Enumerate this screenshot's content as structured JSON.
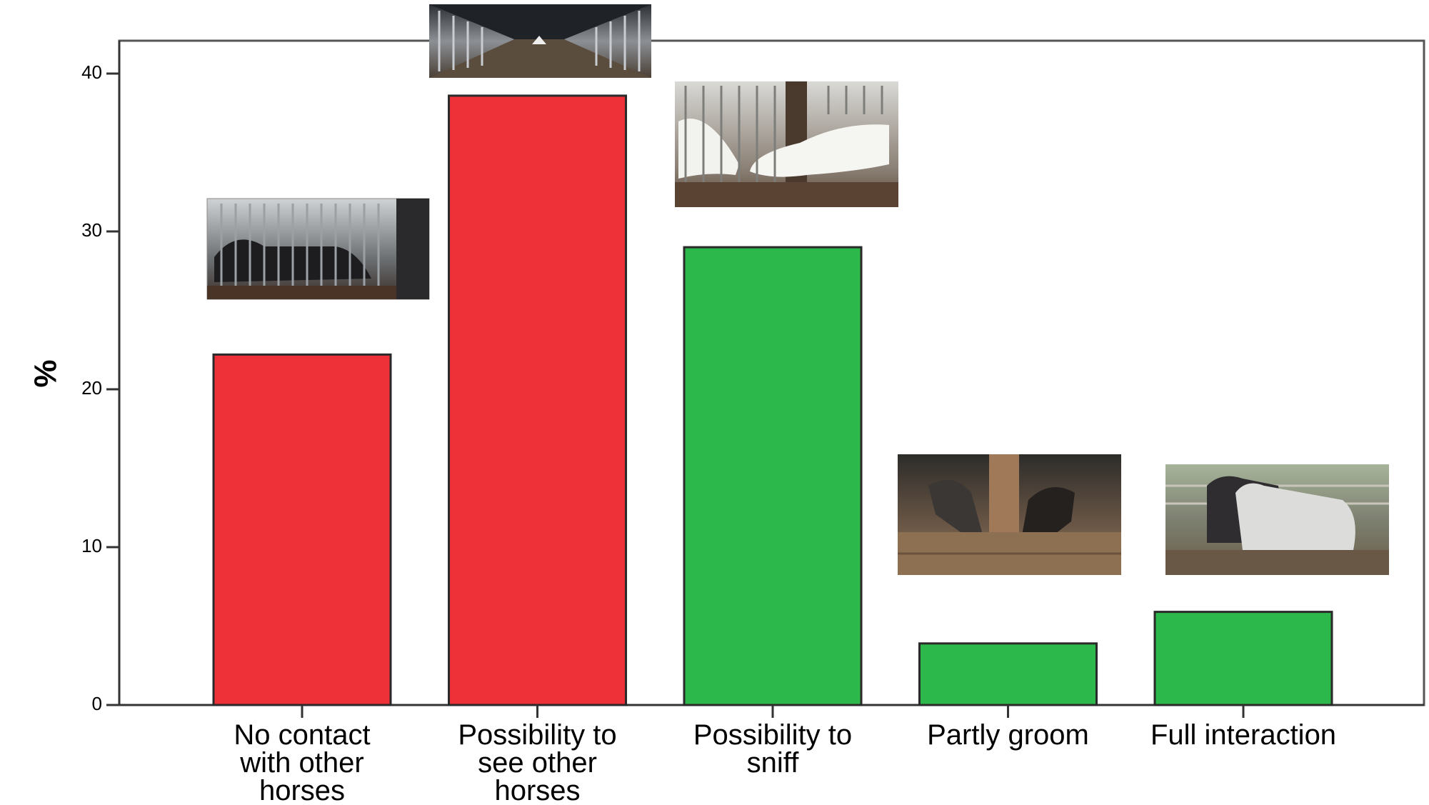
{
  "chart_data": {
    "type": "bar",
    "ylabel": "%",
    "ylim": [
      0,
      40
    ],
    "yticks": [
      "0",
      "10",
      "20",
      "30",
      "40"
    ],
    "categories": [
      [
        "No contact",
        "with other",
        "horses"
      ],
      [
        "Possibility to",
        "see other",
        "horses"
      ],
      [
        "Possibility to",
        "sniff"
      ],
      [
        "Partly groom"
      ],
      [
        "Full interaction"
      ]
    ],
    "values": [
      22.2,
      38.6,
      29.0,
      3.9,
      5.9
    ],
    "colors": [
      "#ee3038",
      "#ee3038",
      "#2db84b",
      "#2db84b",
      "#2db84b"
    ],
    "grid": false,
    "legend": "none",
    "photos": [
      "horse-stall-bars-photo",
      "stable-aisle-photo",
      "horses-sniffing-photo",
      "horses-grooming-photo",
      "horses-paddock-photo"
    ]
  }
}
